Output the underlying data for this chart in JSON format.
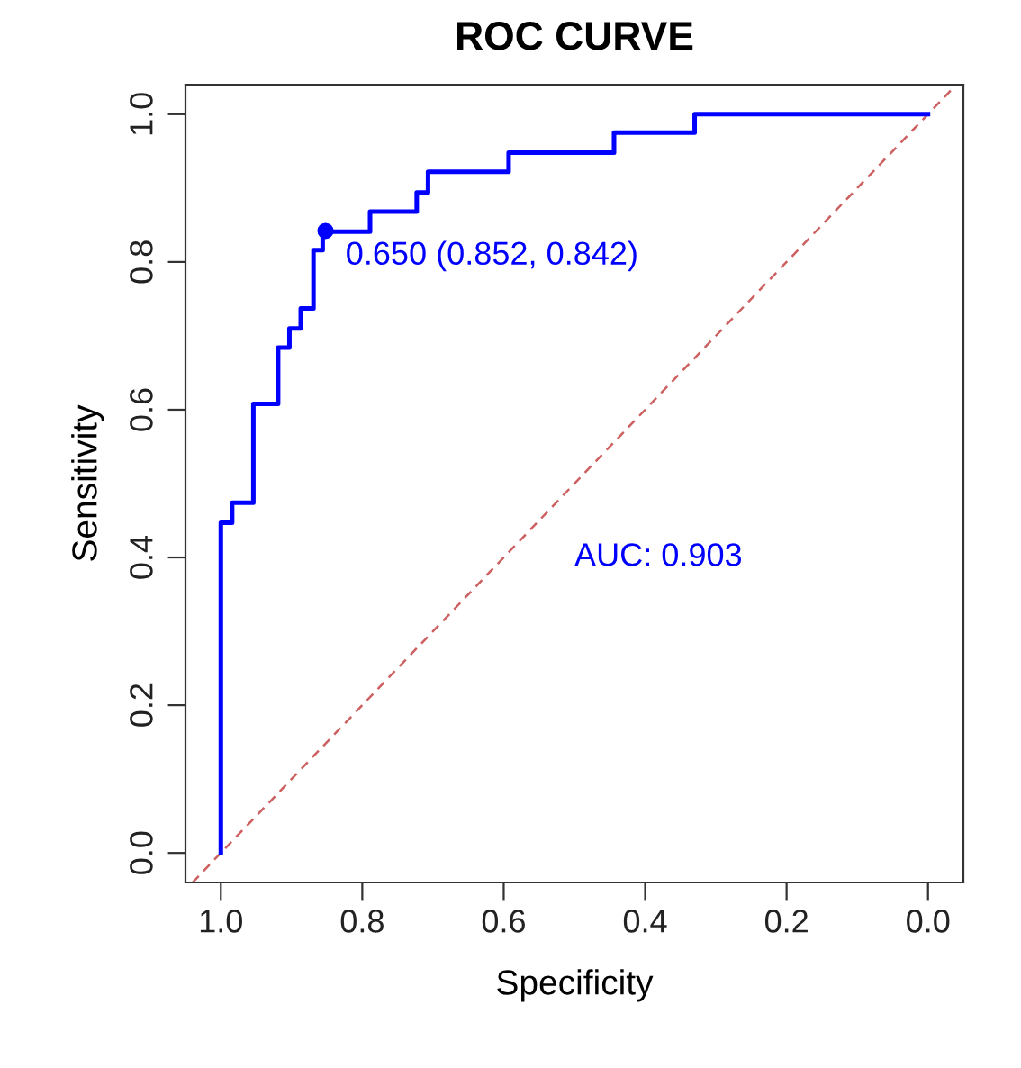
{
  "chart_data": {
    "type": "line",
    "title": "ROC CURVE",
    "xlabel": "Specificity",
    "ylabel": "Sensitivity",
    "xlim": [
      1.05,
      -0.05
    ],
    "ylim": [
      -0.04,
      1.04
    ],
    "xticks": [
      {
        "value": 1.0,
        "label": "1.0"
      },
      0.8,
      0.6,
      0.4,
      0.2,
      {
        "value": 0.0,
        "label": "0.0"
      }
    ],
    "yticks": [
      {
        "value": 0.0,
        "label": "0.0"
      },
      0.2,
      0.4,
      0.6,
      0.8,
      {
        "value": 1.0,
        "label": "1.0"
      }
    ],
    "grid": false,
    "legend": false,
    "series": [
      {
        "color": "#0000ff",
        "line_style": "solid",
        "marker": "none",
        "x": [
          1.0,
          1.0,
          0.984,
          0.984,
          0.954,
          0.954,
          0.919,
          0.919,
          0.903,
          0.903,
          0.887,
          0.887,
          0.869,
          0.869,
          0.856,
          0.856,
          0.789,
          0.789,
          0.723,
          0.723,
          0.707,
          0.707,
          0.593,
          0.593,
          0.444,
          0.444,
          0.33,
          0.33,
          0.0
        ],
        "values": [
          0.0,
          0.447,
          0.447,
          0.474,
          0.474,
          0.608,
          0.608,
          0.684,
          0.684,
          0.71,
          0.71,
          0.737,
          0.737,
          0.816,
          0.816,
          0.841,
          0.841,
          0.868,
          0.868,
          0.894,
          0.894,
          0.922,
          0.922,
          0.948,
          0.948,
          0.975,
          0.975,
          1.0,
          1.0
        ]
      },
      {
        "type": "line",
        "color": "#cd6060",
        "line_style": "dashed",
        "marker": "none",
        "x": [
          1.04,
          -0.04
        ],
        "values": [
          -0.04,
          1.04
        ]
      },
      {
        "type": "scatter",
        "color": "#0000ff",
        "marker": "circle",
        "x": [
          0.852
        ],
        "values": [
          0.842
        ]
      }
    ],
    "annotations": [
      {
        "text": "0.650 (0.852, 0.842)",
        "x": 0.852,
        "y": 0.842
      },
      "AUC: 0.903"
    ]
  }
}
